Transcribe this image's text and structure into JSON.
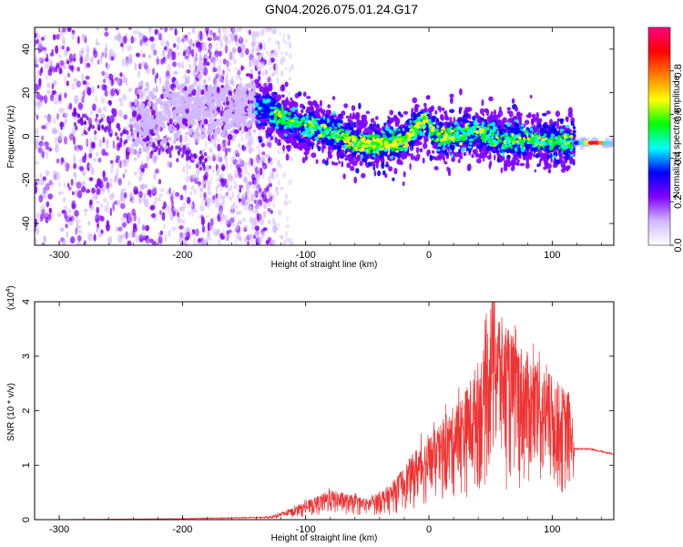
{
  "title": "GN04.2026.075.01.24.G17",
  "chart_data": [
    {
      "type": "heatmap",
      "xlabel": "Height of straight line (km)",
      "ylabel": "Frequency (Hz)",
      "xlim": [
        -320,
        150
      ],
      "ylim": [
        -50,
        50
      ],
      "x_ticks": [
        -300,
        -200,
        -100,
        0,
        100
      ],
      "y_ticks": [
        -40,
        -20,
        0,
        20,
        40
      ],
      "colorbar": {
        "label": "Normalized spectral amplitude",
        "range": [
          0,
          1
        ],
        "ticks": [
          "0.0",
          "0.2",
          "0.4",
          "0.6",
          "0.8"
        ],
        "tick_values": [
          0.0,
          0.2,
          0.4,
          0.6,
          0.8
        ],
        "colors": [
          "#ffffff",
          "#d0b8ff",
          "#8000ff",
          "#0000ff",
          "#00ffff",
          "#00ff00",
          "#ffff00",
          "#ff8000",
          "#ff0000",
          "#ff0080"
        ]
      },
      "ridge_center_hz": [
        [
          -320,
          2
        ],
        [
          -250,
          5
        ],
        [
          -200,
          12
        ],
        [
          -150,
          13
        ],
        [
          -130,
          12
        ],
        [
          -110,
          6
        ],
        [
          -80,
          3
        ],
        [
          -60,
          -3
        ],
        [
          -40,
          -4
        ],
        [
          -20,
          -2
        ],
        [
          -10,
          4
        ],
        [
          -2,
          8
        ],
        [
          5,
          0
        ],
        [
          20,
          0
        ],
        [
          40,
          2
        ],
        [
          60,
          -2
        ],
        [
          80,
          -1
        ],
        [
          100,
          -2
        ],
        [
          115,
          -3
        ],
        [
          130,
          -3
        ],
        [
          150,
          -3
        ]
      ],
      "sparse_region_end_km": -140
    },
    {
      "type": "line",
      "xlabel": "Height of straight line (km)",
      "ylabel": "SNR (10 * v/v)",
      "multiplier_label": "(x10",
      "multiplier_exp": "4",
      "xlim": [
        -320,
        150
      ],
      "ylim": [
        0,
        4
      ],
      "x_ticks": [
        -300,
        -200,
        -100,
        0,
        100
      ],
      "y_ticks": [
        0,
        1,
        2,
        3,
        4
      ],
      "color": "#ee3333",
      "envelope": [
        [
          -320,
          0.0
        ],
        [
          -200,
          0.02
        ],
        [
          -130,
          0.05
        ],
        [
          -110,
          0.2
        ],
        [
          -80,
          0.5
        ],
        [
          -50,
          0.35
        ],
        [
          -30,
          0.6
        ],
        [
          -10,
          1.2
        ],
        [
          10,
          1.6
        ],
        [
          30,
          2.2
        ],
        [
          45,
          2.9
        ],
        [
          52,
          4.0
        ],
        [
          60,
          3.3
        ],
        [
          80,
          2.8
        ],
        [
          100,
          2.4
        ],
        [
          115,
          2.1
        ],
        [
          118,
          1.3
        ],
        [
          130,
          1.3
        ],
        [
          150,
          1.2
        ]
      ]
    }
  ]
}
